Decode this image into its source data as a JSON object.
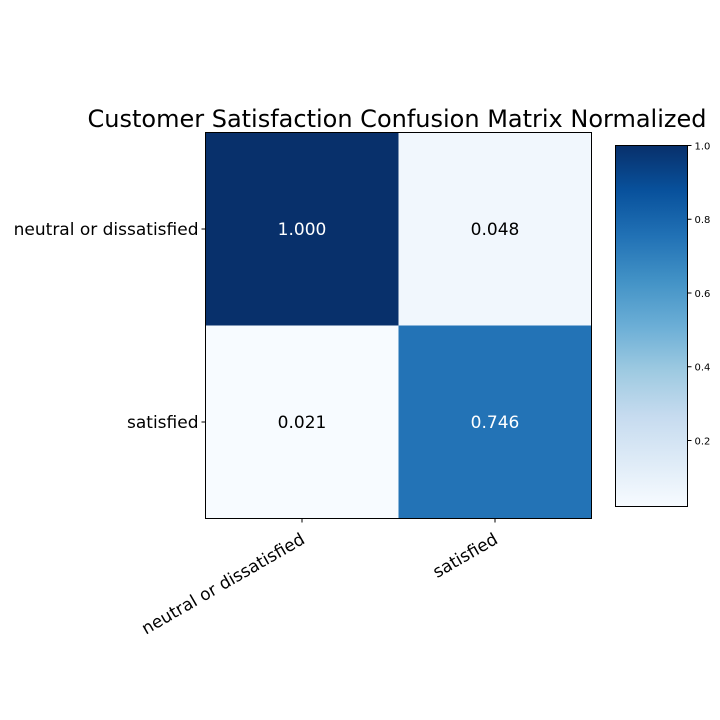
{
  "chart_data": {
    "type": "heatmap",
    "title": "Customer Satisfaction Confusion Matrix Normalized",
    "row_labels": [
      "neutral or dissatisfied",
      "satisfied"
    ],
    "col_labels": [
      "neutral or dissatisfied",
      "satisfied"
    ],
    "values": [
      [
        1.0,
        0.048
      ],
      [
        0.021,
        0.746
      ]
    ],
    "cell_text": [
      [
        "1.000",
        "0.048"
      ],
      [
        "0.021",
        "0.746"
      ]
    ],
    "colormap": "Blues",
    "colorbar": {
      "range": [
        0.021,
        1.0
      ],
      "ticks": [
        0.2,
        0.4,
        0.6,
        0.8,
        1.0
      ],
      "tick_labels": [
        "0.2",
        "0.4",
        "0.6",
        "0.8",
        "1.0"
      ]
    },
    "xlabel_rotation_deg": 30,
    "grid": false
  },
  "colors": {
    "dark_text": "#000000",
    "light_text": "#ffffff"
  }
}
